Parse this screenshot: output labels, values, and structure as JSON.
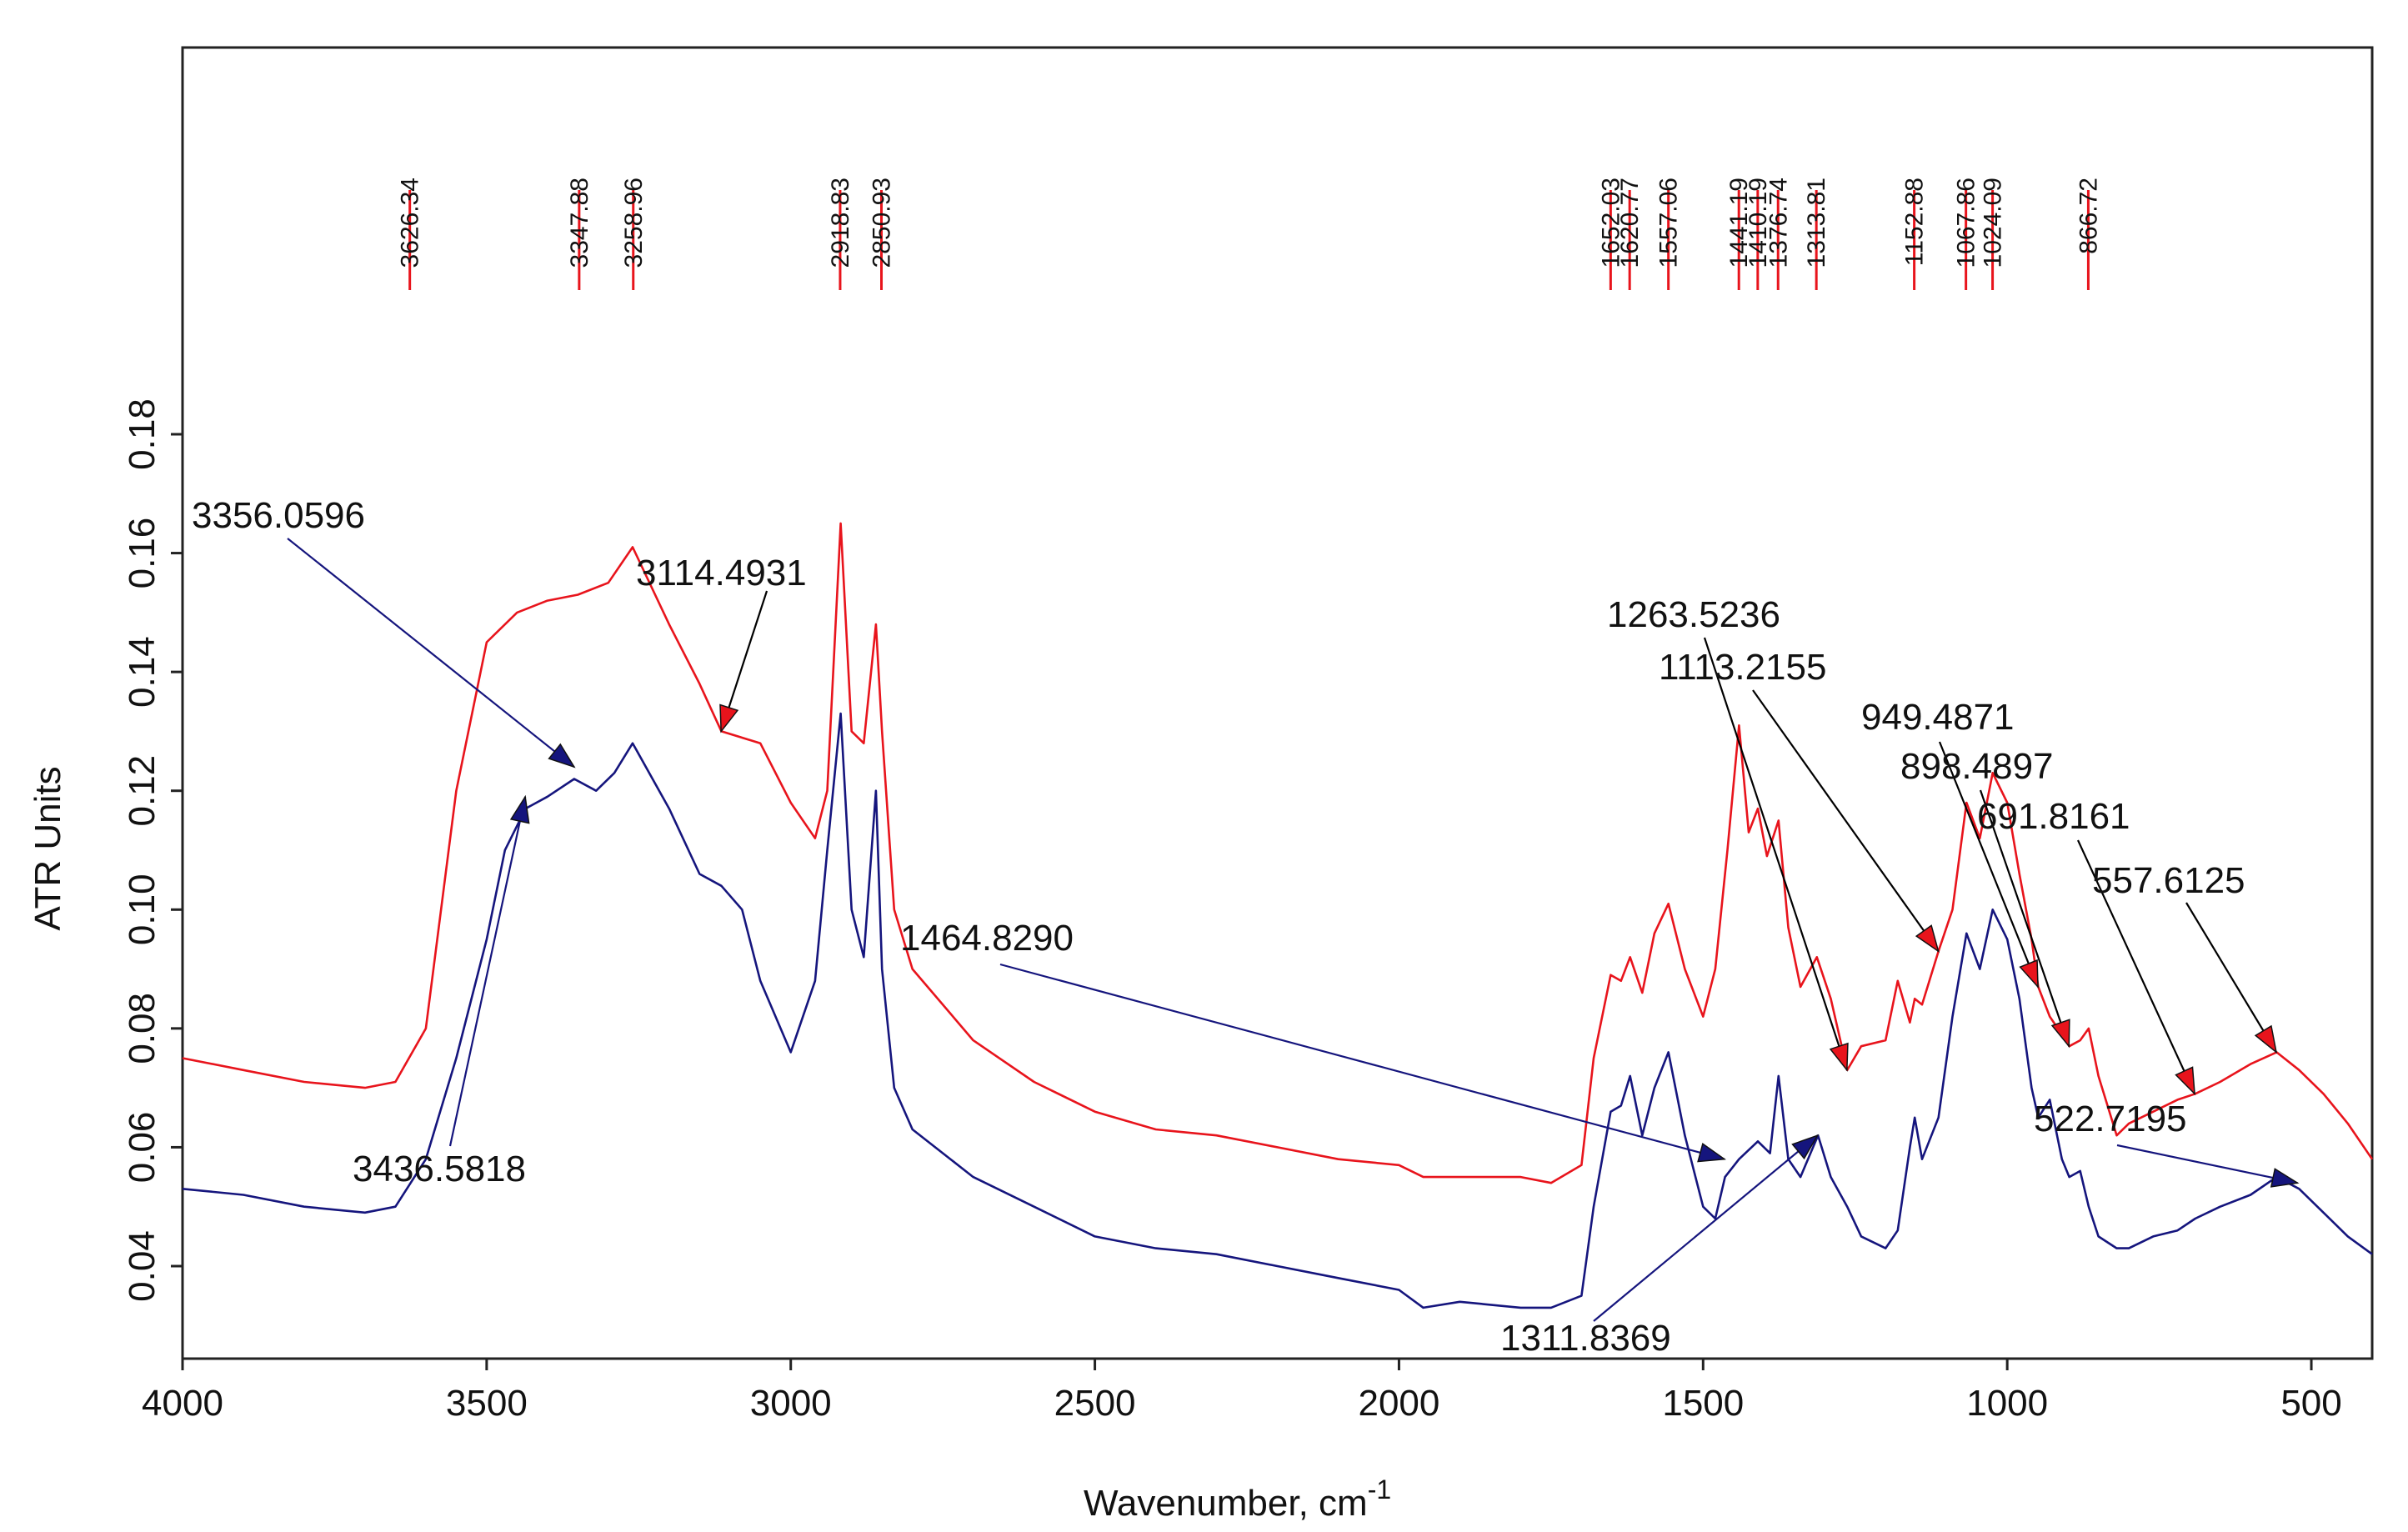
{
  "chart_data": {
    "type": "line",
    "title": "",
    "xlabel": "Wavenumber, cm",
    "xlabel_sup": "-1",
    "ylabel": "ATR Units",
    "xlim": [
      4000,
      400
    ],
    "ylim": [
      0.022,
      0.245
    ],
    "x_ticks": [
      4000,
      3500,
      3000,
      2500,
      2000,
      1500,
      1000,
      500
    ],
    "x_tick_labels": [
      "4000",
      "3500",
      "3000",
      "2500",
      "2000",
      "1500",
      "1000",
      "500"
    ],
    "y_ticks": [
      0.04,
      0.06,
      0.08,
      0.1,
      0.12,
      0.14,
      0.16,
      0.18
    ],
    "y_tick_labels": [
      "0.04",
      "0.06",
      "0.08",
      "0.10",
      "0.12",
      "0.14",
      "0.16",
      "0.18"
    ],
    "grid": false,
    "colors": {
      "red": "#e8141c",
      "blue": "#15157d",
      "frame": "#222222",
      "arrow": "#000000"
    },
    "series": [
      {
        "name": "red spectrum",
        "color": "#e8141c",
        "x": [
          4000,
          3900,
          3800,
          3700,
          3650,
          3600,
          3550,
          3500,
          3450,
          3400,
          3350,
          3300,
          3260,
          3200,
          3150,
          3114,
          3050,
          3000,
          2960,
          2940,
          2918,
          2900,
          2880,
          2860,
          2850,
          2830,
          2800,
          2700,
          2600,
          2500,
          2400,
          2300,
          2200,
          2100,
          2000,
          1960,
          1900,
          1800,
          1750,
          1700,
          1680,
          1652,
          1635,
          1620,
          1600,
          1580,
          1557,
          1530,
          1500,
          1480,
          1460,
          1441,
          1425,
          1410,
          1395,
          1376,
          1360,
          1340,
          1313,
          1290,
          1263,
          1240,
          1200,
          1180,
          1160,
          1152,
          1140,
          1113,
          1090,
          1067,
          1045,
          1024,
          1000,
          980,
          960,
          949,
          930,
          910,
          898,
          880,
          866,
          850,
          820,
          800,
          760,
          720,
          691,
          650,
          600,
          557,
          520,
          480,
          440,
          400
        ],
        "values": [
          0.075,
          0.073,
          0.071,
          0.07,
          0.071,
          0.08,
          0.12,
          0.145,
          0.15,
          0.152,
          0.153,
          0.155,
          0.161,
          0.148,
          0.138,
          0.13,
          0.128,
          0.118,
          0.112,
          0.12,
          0.165,
          0.13,
          0.128,
          0.148,
          0.13,
          0.1,
          0.09,
          0.078,
          0.071,
          0.066,
          0.063,
          0.062,
          0.06,
          0.058,
          0.057,
          0.055,
          0.055,
          0.055,
          0.054,
          0.057,
          0.075,
          0.089,
          0.088,
          0.092,
          0.086,
          0.096,
          0.101,
          0.09,
          0.082,
          0.09,
          0.11,
          0.131,
          0.113,
          0.117,
          0.109,
          0.115,
          0.097,
          0.087,
          0.092,
          0.085,
          0.073,
          0.077,
          0.078,
          0.088,
          0.081,
          0.085,
          0.084,
          0.093,
          0.1,
          0.118,
          0.112,
          0.123,
          0.118,
          0.106,
          0.095,
          0.087,
          0.082,
          0.079,
          0.077,
          0.078,
          0.08,
          0.072,
          0.062,
          0.064,
          0.066,
          0.068,
          0.069,
          0.071,
          0.074,
          0.076,
          0.073,
          0.069,
          0.064,
          0.058
        ]
      },
      {
        "name": "blue spectrum",
        "color": "#15157d",
        "x": [
          4000,
          3900,
          3800,
          3700,
          3650,
          3600,
          3550,
          3500,
          3470,
          3436,
          3400,
          3356,
          3320,
          3290,
          3260,
          3200,
          3150,
          3114,
          3080,
          3050,
          3000,
          2960,
          2940,
          2918,
          2900,
          2880,
          2860,
          2850,
          2830,
          2800,
          2700,
          2600,
          2500,
          2400,
          2300,
          2200,
          2100,
          2000,
          1960,
          1900,
          1800,
          1750,
          1700,
          1680,
          1652,
          1635,
          1620,
          1600,
          1580,
          1557,
          1530,
          1500,
          1480,
          1464,
          1441,
          1410,
          1390,
          1376,
          1360,
          1340,
          1311,
          1290,
          1263,
          1240,
          1200,
          1180,
          1160,
          1152,
          1140,
          1113,
          1090,
          1067,
          1045,
          1024,
          1000,
          980,
          960,
          949,
          930,
          910,
          898,
          880,
          866,
          850,
          820,
          800,
          760,
          720,
          691,
          650,
          600,
          557,
          520,
          480,
          440,
          400
        ],
        "values": [
          0.053,
          0.052,
          0.05,
          0.049,
          0.05,
          0.058,
          0.075,
          0.095,
          0.11,
          0.117,
          0.119,
          0.122,
          0.12,
          0.123,
          0.128,
          0.117,
          0.106,
          0.104,
          0.1,
          0.088,
          0.076,
          0.088,
          0.11,
          0.133,
          0.1,
          0.092,
          0.12,
          0.09,
          0.07,
          0.063,
          0.055,
          0.05,
          0.045,
          0.043,
          0.042,
          0.04,
          0.038,
          0.036,
          0.033,
          0.034,
          0.033,
          0.033,
          0.035,
          0.05,
          0.066,
          0.067,
          0.072,
          0.062,
          0.07,
          0.076,
          0.062,
          0.05,
          0.048,
          0.055,
          0.058,
          0.061,
          0.059,
          0.072,
          0.058,
          0.055,
          0.062,
          0.055,
          0.05,
          0.045,
          0.043,
          0.046,
          0.06,
          0.065,
          0.058,
          0.065,
          0.082,
          0.096,
          0.09,
          0.1,
          0.095,
          0.085,
          0.07,
          0.065,
          0.068,
          0.058,
          0.055,
          0.056,
          0.05,
          0.045,
          0.043,
          0.043,
          0.045,
          0.046,
          0.048,
          0.05,
          0.052,
          0.055,
          0.053,
          0.049,
          0.045,
          0.042
        ]
      }
    ],
    "peak_markers": [
      {
        "label": "3626.34",
        "x": 3626.34
      },
      {
        "label": "3347.88",
        "x": 3347.88
      },
      {
        "label": "3258.96",
        "x": 3258.96
      },
      {
        "label": "2918.83",
        "x": 2918.83
      },
      {
        "label": "2850.93",
        "x": 2850.93
      },
      {
        "label": "1652.03",
        "x": 1652.03
      },
      {
        "label": "1620.77",
        "x": 1620.77
      },
      {
        "label": "1557.06",
        "x": 1557.06
      },
      {
        "label": "1441.19",
        "x": 1441.19
      },
      {
        "label": "1410.19",
        "x": 1410.19
      },
      {
        "label": "1376.74",
        "x": 1376.74
      },
      {
        "label": "1313.81",
        "x": 1313.81
      },
      {
        "label": "1152.88",
        "x": 1152.88
      },
      {
        "label": "1067.86",
        "x": 1067.86
      },
      {
        "label": "1024.09",
        "x": 1024.09
      },
      {
        "label": "866.72",
        "x": 866.72
      }
    ],
    "annotations": [
      {
        "label": "3356.0596",
        "series": "blue",
        "x": 3356.0596,
        "y": 0.124
      },
      {
        "label": "3114.4931",
        "series": "red",
        "x": 3114.4931,
        "y": 0.13
      },
      {
        "label": "3436.5818",
        "series": "blue",
        "x": 3436.5818,
        "y": 0.119
      },
      {
        "label": "1464.8290",
        "series": "blue",
        "x": 1464.829,
        "y": 0.058
      },
      {
        "label": "1263.5236",
        "series": "red",
        "x": 1263.5236,
        "y": 0.073
      },
      {
        "label": "1113.2155",
        "series": "red",
        "x": 1113.2155,
        "y": 0.093
      },
      {
        "label": "949.4871",
        "series": "red",
        "x": 949.4871,
        "y": 0.087
      },
      {
        "label": "898.4897",
        "series": "red",
        "x": 898.4897,
        "y": 0.077
      },
      {
        "label": "691.8161",
        "series": "red",
        "x": 691.8161,
        "y": 0.069
      },
      {
        "label": "557.6125",
        "series": "red",
        "x": 557.6125,
        "y": 0.076
      },
      {
        "label": "522.7195",
        "series": "blue",
        "x": 522.7195,
        "y": 0.054
      },
      {
        "label": "1311.8369",
        "series": "blue",
        "x": 1311.8369,
        "y": 0.062
      }
    ]
  }
}
